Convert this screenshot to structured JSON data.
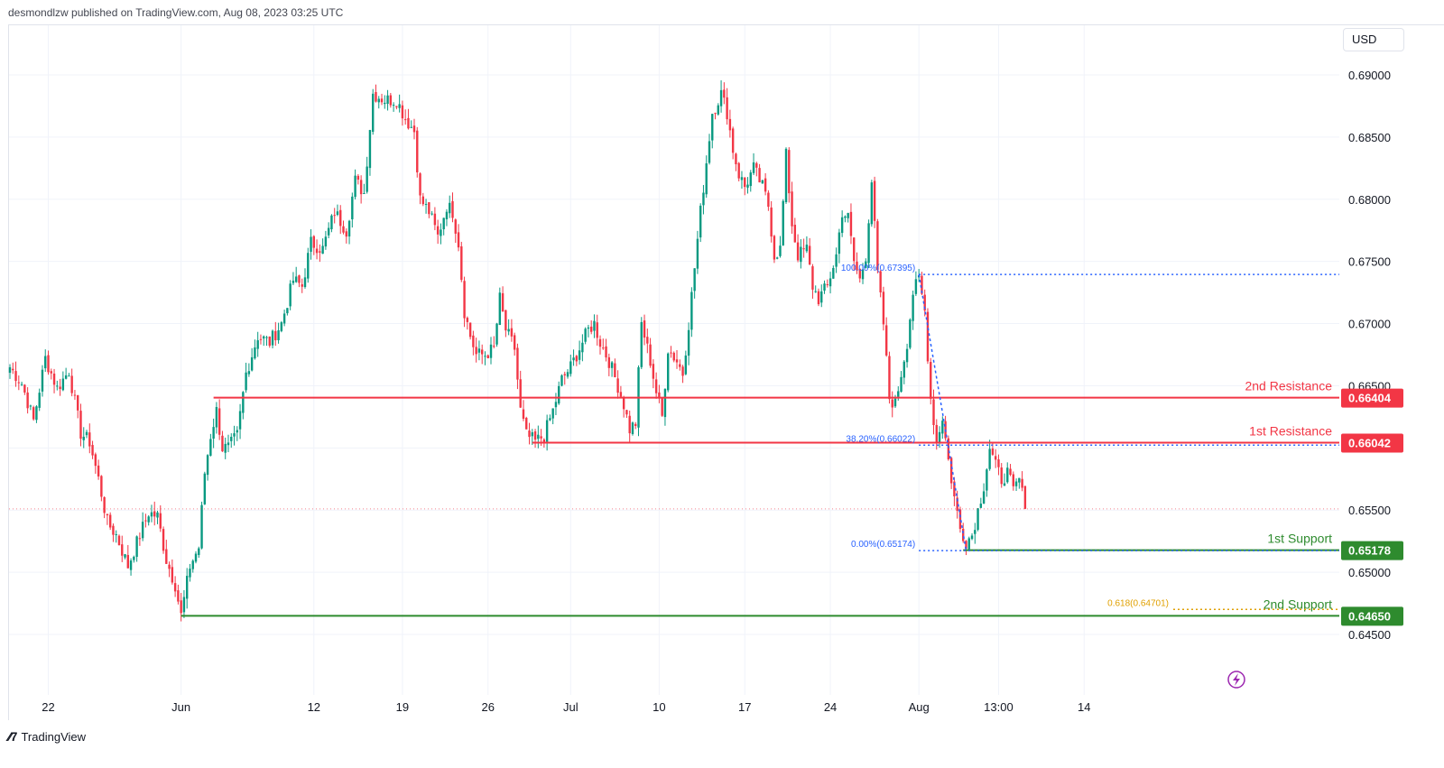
{
  "header": {
    "published": "desmondlzw published on TradingView.com, Aug 08, 2023 03:25 UTC"
  },
  "footer": {
    "brand": "TradingView"
  },
  "currency_button": "USD",
  "colors": {
    "up": "#089981",
    "down": "#f23645",
    "resistance": "#f23645",
    "support": "#2e8b2e",
    "fib": "#2962ff",
    "fib_golden": "#e0a000",
    "grid": "#f0f3fa"
  },
  "chart_data": {
    "type": "candlestick",
    "title": "",
    "xlabel": "",
    "ylabel": "",
    "ylim": [
      0.6415,
      0.6915
    ],
    "y_ticks": [
      "0.69000",
      "0.68500",
      "0.68000",
      "0.67500",
      "0.67000",
      "0.66500",
      "0.66000",
      "0.65500",
      "0.65000",
      "0.64500"
    ],
    "y_tick_values": [
      0.69,
      0.685,
      0.68,
      0.675,
      0.67,
      0.665,
      0.66,
      0.655,
      0.65,
      0.645
    ],
    "x_ticks": [
      {
        "label": "22",
        "bar": 13
      },
      {
        "label": "Jun",
        "bar": 58
      },
      {
        "label": "12",
        "bar": 103
      },
      {
        "label": "19",
        "bar": 133
      },
      {
        "label": "26",
        "bar": 162
      },
      {
        "label": "Jul",
        "bar": 190
      },
      {
        "label": "10",
        "bar": 220
      },
      {
        "label": "17",
        "bar": 249
      },
      {
        "label": "24",
        "bar": 278
      },
      {
        "label": "Aug",
        "bar": 308
      },
      {
        "label": "13:00",
        "bar": 335
      },
      {
        "label": "14",
        "bar": 364
      }
    ],
    "bar_count": 370,
    "last_price": 0.6551,
    "anchors": [
      [
        0,
        0.6665
      ],
      [
        4,
        0.6652
      ],
      [
        8,
        0.6622
      ],
      [
        12,
        0.6672
      ],
      [
        16,
        0.6648
      ],
      [
        20,
        0.6662
      ],
      [
        24,
        0.6612
      ],
      [
        27,
        0.6605
      ],
      [
        30,
        0.6575
      ],
      [
        33,
        0.654
      ],
      [
        36,
        0.653
      ],
      [
        40,
        0.6505
      ],
      [
        44,
        0.653
      ],
      [
        47,
        0.6548
      ],
      [
        50,
        0.6545
      ],
      [
        53,
        0.651
      ],
      [
        56,
        0.649
      ],
      [
        58,
        0.6465
      ],
      [
        61,
        0.6505
      ],
      [
        64,
        0.652
      ],
      [
        66,
        0.658
      ],
      [
        68,
        0.661
      ],
      [
        70,
        0.663
      ],
      [
        72,
        0.66
      ],
      [
        74,
        0.66
      ],
      [
        77,
        0.661
      ],
      [
        80,
        0.666
      ],
      [
        84,
        0.669
      ],
      [
        88,
        0.6685
      ],
      [
        92,
        0.67
      ],
      [
        96,
        0.6735
      ],
      [
        99,
        0.673
      ],
      [
        102,
        0.6765
      ],
      [
        106,
        0.676
      ],
      [
        110,
        0.679
      ],
      [
        114,
        0.6775
      ],
      [
        117,
        0.6815
      ],
      [
        120,
        0.6805
      ],
      [
        123,
        0.6885
      ],
      [
        127,
        0.688
      ],
      [
        131,
        0.688
      ],
      [
        134,
        0.6865
      ],
      [
        137,
        0.6855
      ],
      [
        139,
        0.68
      ],
      [
        142,
        0.679
      ],
      [
        145,
        0.677
      ],
      [
        148,
        0.6795
      ],
      [
        150,
        0.679
      ],
      [
        152,
        0.6765
      ],
      [
        154,
        0.671
      ],
      [
        156,
        0.669
      ],
      [
        158,
        0.6675
      ],
      [
        161,
        0.6675
      ],
      [
        164,
        0.668
      ],
      [
        166,
        0.672
      ],
      [
        168,
        0.6695
      ],
      [
        171,
        0.668
      ],
      [
        173,
        0.663
      ],
      [
        175,
        0.661
      ],
      [
        178,
        0.6605
      ],
      [
        181,
        0.661
      ],
      [
        184,
        0.663
      ],
      [
        187,
        0.6655
      ],
      [
        190,
        0.6665
      ],
      [
        193,
        0.668
      ],
      [
        196,
        0.6695
      ],
      [
        198,
        0.67
      ],
      [
        200,
        0.6685
      ],
      [
        203,
        0.667
      ],
      [
        206,
        0.665
      ],
      [
        208,
        0.6635
      ],
      [
        210,
        0.6615
      ],
      [
        212,
        0.662
      ],
      [
        214,
        0.67
      ],
      [
        217,
        0.667
      ],
      [
        219,
        0.6645
      ],
      [
        221,
        0.6625
      ],
      [
        223,
        0.668
      ],
      [
        226,
        0.667
      ],
      [
        228,
        0.666
      ],
      [
        230,
        0.67
      ],
      [
        232,
        0.6745
      ],
      [
        234,
        0.679
      ],
      [
        236,
        0.683
      ],
      [
        238,
        0.687
      ],
      [
        241,
        0.6885
      ],
      [
        243,
        0.687
      ],
      [
        245,
        0.684
      ],
      [
        247,
        0.682
      ],
      [
        249,
        0.681
      ],
      [
        252,
        0.6825
      ],
      [
        255,
        0.681
      ],
      [
        257,
        0.6795
      ],
      [
        259,
        0.6755
      ],
      [
        261,
        0.676
      ],
      [
        263,
        0.6835
      ],
      [
        265,
        0.678
      ],
      [
        267,
        0.6755
      ],
      [
        270,
        0.676
      ],
      [
        272,
        0.673
      ],
      [
        274,
        0.672
      ],
      [
        277,
        0.673
      ],
      [
        280,
        0.6755
      ],
      [
        282,
        0.679
      ],
      [
        284,
        0.6785
      ],
      [
        286,
        0.675
      ],
      [
        288,
        0.6735
      ],
      [
        290,
        0.6755
      ],
      [
        292,
        0.6815
      ],
      [
        294,
        0.674
      ],
      [
        296,
        0.67
      ],
      [
        298,
        0.664
      ],
      [
        300,
        0.6635
      ],
      [
        302,
        0.666
      ],
      [
        304,
        0.6685
      ],
      [
        306,
        0.6725
      ],
      [
        308,
        0.6735
      ],
      [
        310,
        0.671
      ],
      [
        312,
        0.664
      ],
      [
        314,
        0.6605
      ],
      [
        316,
        0.6625
      ],
      [
        318,
        0.659
      ],
      [
        320,
        0.656
      ],
      [
        322,
        0.6535
      ],
      [
        324,
        0.6525
      ],
      [
        326,
        0.653
      ],
      [
        328,
        0.655
      ],
      [
        330,
        0.657
      ],
      [
        332,
        0.66
      ],
      [
        334,
        0.6585
      ],
      [
        336,
        0.6575
      ],
      [
        338,
        0.658
      ],
      [
        340,
        0.6565
      ],
      [
        342,
        0.6575
      ],
      [
        344,
        0.6551
      ]
    ],
    "levels": [
      {
        "name": "2nd Resistance",
        "value": 0.66404,
        "label": "0.66404",
        "kind": "resistance",
        "start_bar": 69
      },
      {
        "name": "1st Resistance",
        "value": 0.66042,
        "label": "0.66042",
        "kind": "resistance",
        "start_bar": 177
      },
      {
        "name": "1st Support",
        "value": 0.65178,
        "label": "0.65178",
        "kind": "support",
        "start_bar": 323
      },
      {
        "name": "2nd Support",
        "value": 0.6465,
        "label": "0.64650",
        "kind": "support",
        "start_bar": 58
      }
    ],
    "fibonacci": {
      "start_bar": 308,
      "end_bar": 368,
      "levels": [
        {
          "label": "100.00%(0.67395)",
          "value": 0.67395
        },
        {
          "label": "38.20%(0.66022)",
          "value": 0.66022
        },
        {
          "label": "0.00%(0.65174)",
          "value": 0.65174
        },
        {
          "label": "0.618(0.64701)",
          "value": 0.64701
        }
      ]
    },
    "price_axis_labels": [
      {
        "value": 0.66404,
        "label": "0.66404",
        "kind": "resistance"
      },
      {
        "value": 0.66042,
        "label": "0.66042",
        "kind": "resistance"
      },
      {
        "value": 0.65178,
        "label": "0.65178",
        "kind": "support"
      },
      {
        "value": 0.6465,
        "label": "0.64650",
        "kind": "support"
      }
    ]
  }
}
